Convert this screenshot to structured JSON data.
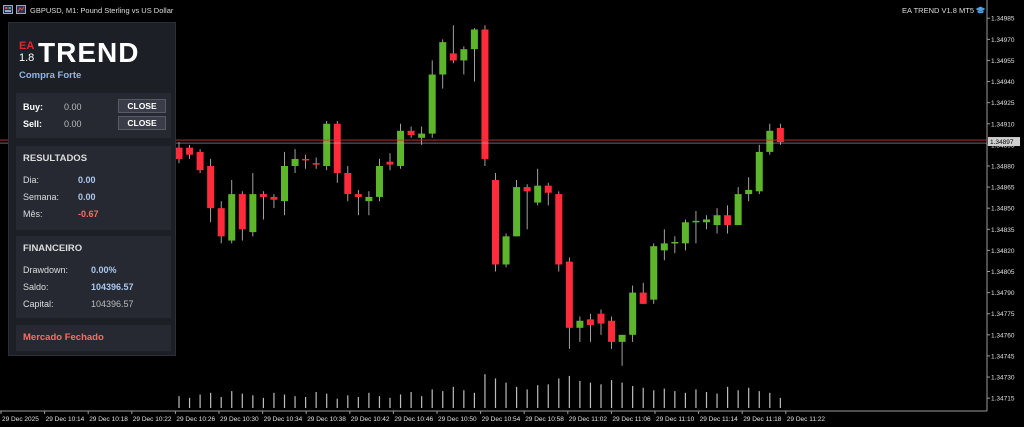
{
  "window": {
    "symbol_title": "GBPUSD, M1:  Pound Sterling vs US Dollar",
    "ea_label": "EA TREND V1.8 MT5"
  },
  "panel": {
    "logo_ea": "EA",
    "logo_version": "1.8",
    "logo_word": "TREND",
    "signal": "Compra Forte",
    "trade": {
      "buy_label": "Buy:",
      "buy_value": "0.00",
      "sell_label": "Sell:",
      "sell_value": "0.00",
      "close_label": "CLOSE"
    },
    "results": {
      "title": "RESULTADOS",
      "day_label": "Dia:",
      "day_value": "0.00",
      "week_label": "Semana:",
      "week_value": "0.00",
      "month_label": "Mês:",
      "month_value": "-0.67"
    },
    "financial": {
      "title": "FINANCEIRO",
      "drawdown_label": "Drawdown:",
      "drawdown_value": "0.00%",
      "balance_label": "Saldo:",
      "balance_value": "104396.57",
      "capital_label": "Capital:",
      "capital_value": "104396.57"
    },
    "status": "Mercado Fechado"
  },
  "chart_data": {
    "type": "candlestick",
    "symbol": "GBPUSD",
    "timeframe": "M1",
    "ylim": [
      1.3471,
      1.3499
    ],
    "y_ticks": [
      "1.34985",
      "1.34970",
      "1.34955",
      "1.34940",
      "1.34925",
      "1.34910",
      "1.34895",
      "1.34880",
      "1.34865",
      "1.34850",
      "1.34835",
      "1.34820",
      "1.34805",
      "1.34790",
      "1.34775",
      "1.34760",
      "1.34745",
      "1.34730",
      "1.34715"
    ],
    "current_price": "1.34897",
    "x_ticks": [
      "29 Dec 2025",
      "29 Dec 10:14",
      "29 Dec 10:18",
      "29 Dec 10:22",
      "29 Dec 10:26",
      "29 Dec 10:30",
      "29 Dec 10:34",
      "29 Dec 10:38",
      "29 Dec 10:42",
      "29 Dec 10:46",
      "29 Dec 10:50",
      "29 Dec 10:54",
      "29 Dec 10:58",
      "29 Dec 11:02",
      "29 Dec 11:06",
      "29 Dec 11:10",
      "29 Dec 11:14",
      "29 Dec 11:18",
      "29 Dec 11:22"
    ],
    "candles": [
      {
        "o": 1.34893,
        "h": 1.34897,
        "l": 1.34882,
        "c": 1.34885
      },
      {
        "o": 1.34893,
        "h": 1.34895,
        "l": 1.34885,
        "c": 1.34888
      },
      {
        "o": 1.3489,
        "h": 1.34892,
        "l": 1.34875,
        "c": 1.34877
      },
      {
        "o": 1.3488,
        "h": 1.34885,
        "l": 1.3484,
        "c": 1.3485
      },
      {
        "o": 1.3485,
        "h": 1.34855,
        "l": 1.34825,
        "c": 1.3483
      },
      {
        "o": 1.34827,
        "h": 1.3487,
        "l": 1.34825,
        "c": 1.3486
      },
      {
        "o": 1.3486,
        "h": 1.34862,
        "l": 1.34827,
        "c": 1.34835
      },
      {
        "o": 1.34833,
        "h": 1.34875,
        "l": 1.3483,
        "c": 1.3486
      },
      {
        "o": 1.3486,
        "h": 1.34862,
        "l": 1.34842,
        "c": 1.34858
      },
      {
        "o": 1.34858,
        "h": 1.3486,
        "l": 1.3485,
        "c": 1.34856
      },
      {
        "o": 1.34855,
        "h": 1.3489,
        "l": 1.34845,
        "c": 1.3488
      },
      {
        "o": 1.3488,
        "h": 1.34892,
        "l": 1.34875,
        "c": 1.34885
      },
      {
        "o": 1.34885,
        "h": 1.34888,
        "l": 1.34878,
        "c": 1.34884
      },
      {
        "o": 1.34882,
        "h": 1.34886,
        "l": 1.34878,
        "c": 1.34881
      },
      {
        "o": 1.3488,
        "h": 1.34912,
        "l": 1.34877,
        "c": 1.3491
      },
      {
        "o": 1.3491,
        "h": 1.34912,
        "l": 1.34868,
        "c": 1.34875
      },
      {
        "o": 1.34875,
        "h": 1.3488,
        "l": 1.34855,
        "c": 1.3486
      },
      {
        "o": 1.3486,
        "h": 1.34863,
        "l": 1.34845,
        "c": 1.34858
      },
      {
        "o": 1.34855,
        "h": 1.34862,
        "l": 1.34845,
        "c": 1.34858
      },
      {
        "o": 1.34858,
        "h": 1.34885,
        "l": 1.34855,
        "c": 1.3488
      },
      {
        "o": 1.34883,
        "h": 1.34889,
        "l": 1.34877,
        "c": 1.34881
      },
      {
        "o": 1.3488,
        "h": 1.3491,
        "l": 1.34878,
        "c": 1.34905
      },
      {
        "o": 1.34905,
        "h": 1.34908,
        "l": 1.349,
        "c": 1.34902
      },
      {
        "o": 1.349,
        "h": 1.34908,
        "l": 1.34895,
        "c": 1.34903
      },
      {
        "o": 1.34903,
        "h": 1.34955,
        "l": 1.349,
        "c": 1.34945
      },
      {
        "o": 1.34945,
        "h": 1.3497,
        "l": 1.34935,
        "c": 1.34968
      },
      {
        "o": 1.3496,
        "h": 1.3498,
        "l": 1.34953,
        "c": 1.34955
      },
      {
        "o": 1.34955,
        "h": 1.34965,
        "l": 1.34945,
        "c": 1.34963
      },
      {
        "o": 1.34963,
        "h": 1.34978,
        "l": 1.3494,
        "c": 1.34977
      },
      {
        "o": 1.34977,
        "h": 1.3498,
        "l": 1.3488,
        "c": 1.34885
      },
      {
        "o": 1.3487,
        "h": 1.34875,
        "l": 1.34805,
        "c": 1.3481
      },
      {
        "o": 1.3481,
        "h": 1.34832,
        "l": 1.34808,
        "c": 1.3483
      },
      {
        "o": 1.3483,
        "h": 1.3487,
        "l": 1.3483,
        "c": 1.34865
      },
      {
        "o": 1.34865,
        "h": 1.34867,
        "l": 1.34835,
        "c": 1.34862
      },
      {
        "o": 1.34854,
        "h": 1.34878,
        "l": 1.34852,
        "c": 1.34866
      },
      {
        "o": 1.34866,
        "h": 1.34868,
        "l": 1.34852,
        "c": 1.34861
      },
      {
        "o": 1.3486,
        "h": 1.34862,
        "l": 1.34805,
        "c": 1.3481
      },
      {
        "o": 1.34812,
        "h": 1.34815,
        "l": 1.3475,
        "c": 1.34765
      },
      {
        "o": 1.34765,
        "h": 1.34773,
        "l": 1.34755,
        "c": 1.3477
      },
      {
        "o": 1.34771,
        "h": 1.34775,
        "l": 1.34755,
        "c": 1.34767
      },
      {
        "o": 1.34775,
        "h": 1.34778,
        "l": 1.3476,
        "c": 1.34768
      },
      {
        "o": 1.3477,
        "h": 1.34773,
        "l": 1.3475,
        "c": 1.34755
      },
      {
        "o": 1.34755,
        "h": 1.3476,
        "l": 1.34738,
        "c": 1.3476
      },
      {
        "o": 1.3476,
        "h": 1.34795,
        "l": 1.34755,
        "c": 1.3479
      },
      {
        "o": 1.3479,
        "h": 1.34797,
        "l": 1.34782,
        "c": 1.34782
      },
      {
        "o": 1.34785,
        "h": 1.34825,
        "l": 1.34782,
        "c": 1.34823
      },
      {
        "o": 1.3482,
        "h": 1.34835,
        "l": 1.34813,
        "c": 1.34825
      },
      {
        "o": 1.34825,
        "h": 1.3483,
        "l": 1.34818,
        "c": 1.34826
      },
      {
        "o": 1.34825,
        "h": 1.34842,
        "l": 1.3482,
        "c": 1.3484
      },
      {
        "o": 1.3484,
        "h": 1.34848,
        "l": 1.34825,
        "c": 1.34841
      },
      {
        "o": 1.3484,
        "h": 1.34845,
        "l": 1.34835,
        "c": 1.34842
      },
      {
        "o": 1.34838,
        "h": 1.3485,
        "l": 1.34832,
        "c": 1.34845
      },
      {
        "o": 1.34845,
        "h": 1.34852,
        "l": 1.34832,
        "c": 1.34838
      },
      {
        "o": 1.34838,
        "h": 1.34865,
        "l": 1.34838,
        "c": 1.3486
      },
      {
        "o": 1.3486,
        "h": 1.34872,
        "l": 1.34855,
        "c": 1.34863
      },
      {
        "o": 1.34862,
        "h": 1.34895,
        "l": 1.3486,
        "c": 1.3489
      },
      {
        "o": 1.3489,
        "h": 1.3491,
        "l": 1.34888,
        "c": 1.34905
      },
      {
        "o": 1.34907,
        "h": 1.3491,
        "l": 1.34895,
        "c": 1.34897
      }
    ],
    "volumes": [
      14,
      12,
      16,
      18,
      13,
      20,
      17,
      15,
      12,
      18,
      16,
      14,
      13,
      19,
      17,
      11,
      15,
      13,
      18,
      14,
      12,
      16,
      19,
      14,
      22,
      20,
      25,
      21,
      18,
      40,
      35,
      30,
      25,
      22,
      27,
      28,
      35,
      38,
      32,
      30,
      28,
      33,
      30,
      26,
      24,
      21,
      23,
      20,
      18,
      22,
      19,
      17,
      25,
      21,
      24,
      20,
      18,
      12
    ]
  },
  "colors": {
    "bull": "#5db52c",
    "bear": "#ff2b3a",
    "price_line": "#d9323a",
    "axis_text": "#e0e0e0"
  }
}
